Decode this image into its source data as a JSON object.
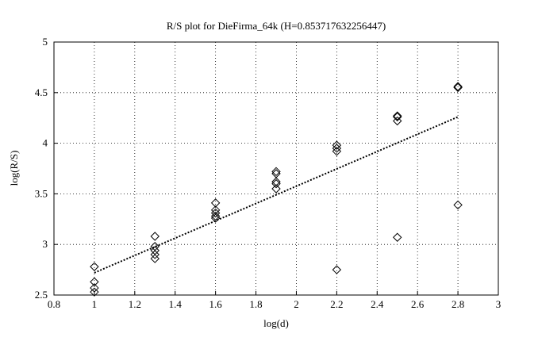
{
  "chart_data": {
    "type": "scatter",
    "title": "R/S plot for DieFirma_64k (H=0.853717632256447)",
    "xlabel": "log(d)",
    "ylabel": "log(R/S)",
    "xlim": [
      0.8,
      3
    ],
    "xticks": [
      0.8,
      1,
      1.2,
      1.4,
      1.6,
      1.8,
      2,
      2.2,
      2.4,
      2.6,
      2.8,
      3
    ],
    "ylim": [
      2.5,
      5
    ],
    "yticks": [
      2.5,
      3,
      3.5,
      4,
      4.5,
      5
    ],
    "grid": true,
    "series": [
      {
        "type": "scatter",
        "marker": "diamond",
        "color": "#000000",
        "x": [
          1,
          1,
          1,
          1,
          1.3,
          1.3,
          1.3,
          1.3,
          1.3,
          1.6,
          1.6,
          1.6,
          1.6,
          1.6,
          1.9,
          1.9,
          1.9,
          1.9,
          1.9,
          2.2,
          2.2,
          2.2,
          2.2,
          2.5,
          2.5,
          2.5,
          2.5,
          2.8,
          2.8,
          2.8
        ],
        "values": [
          2.78,
          2.63,
          2.57,
          2.53,
          3.08,
          2.98,
          2.94,
          2.9,
          2.86,
          3.41,
          3.34,
          3.31,
          3.28,
          3.26,
          3.72,
          3.7,
          3.62,
          3.6,
          3.55,
          3.98,
          3.95,
          3.92,
          2.75,
          4.27,
          4.26,
          4.22,
          3.07,
          4.56,
          4.55,
          3.39
        ]
      },
      {
        "type": "line",
        "style": "dotted",
        "color": "#000000",
        "x": [
          1,
          2.8
        ],
        "values": [
          2.72,
          4.26
        ]
      }
    ]
  }
}
